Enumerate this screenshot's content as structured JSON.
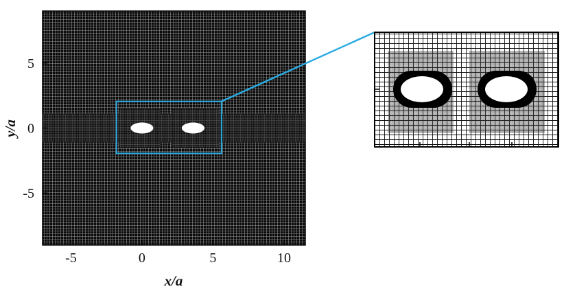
{
  "chart_data": {
    "type": "diagram",
    "xlabel": "x/a",
    "ylabel": "y/a",
    "xlim": [
      -7,
      11.5
    ],
    "ylim": [
      -9,
      9
    ],
    "x_ticks": [
      -5,
      0,
      5,
      10
    ],
    "y_ticks": [
      -5,
      0,
      5
    ],
    "x_tick_labels": [
      "-5",
      "0",
      "5",
      "10"
    ],
    "y_tick_labels": [
      "-5",
      "0",
      "5"
    ],
    "bodies": [
      {
        "cx": 0,
        "cy": 0,
        "rx": 0.8,
        "ry": 0.42
      },
      {
        "cx": 3.6,
        "cy": 0,
        "rx": 0.8,
        "ry": 0.42
      }
    ],
    "zoom_region": {
      "x": [
        -1.8,
        5.6
      ],
      "y": [
        -1.95,
        2.05
      ]
    },
    "mesh_color": "#000000",
    "highlight_color": "#29abe2",
    "background_color": "#ffffff"
  }
}
